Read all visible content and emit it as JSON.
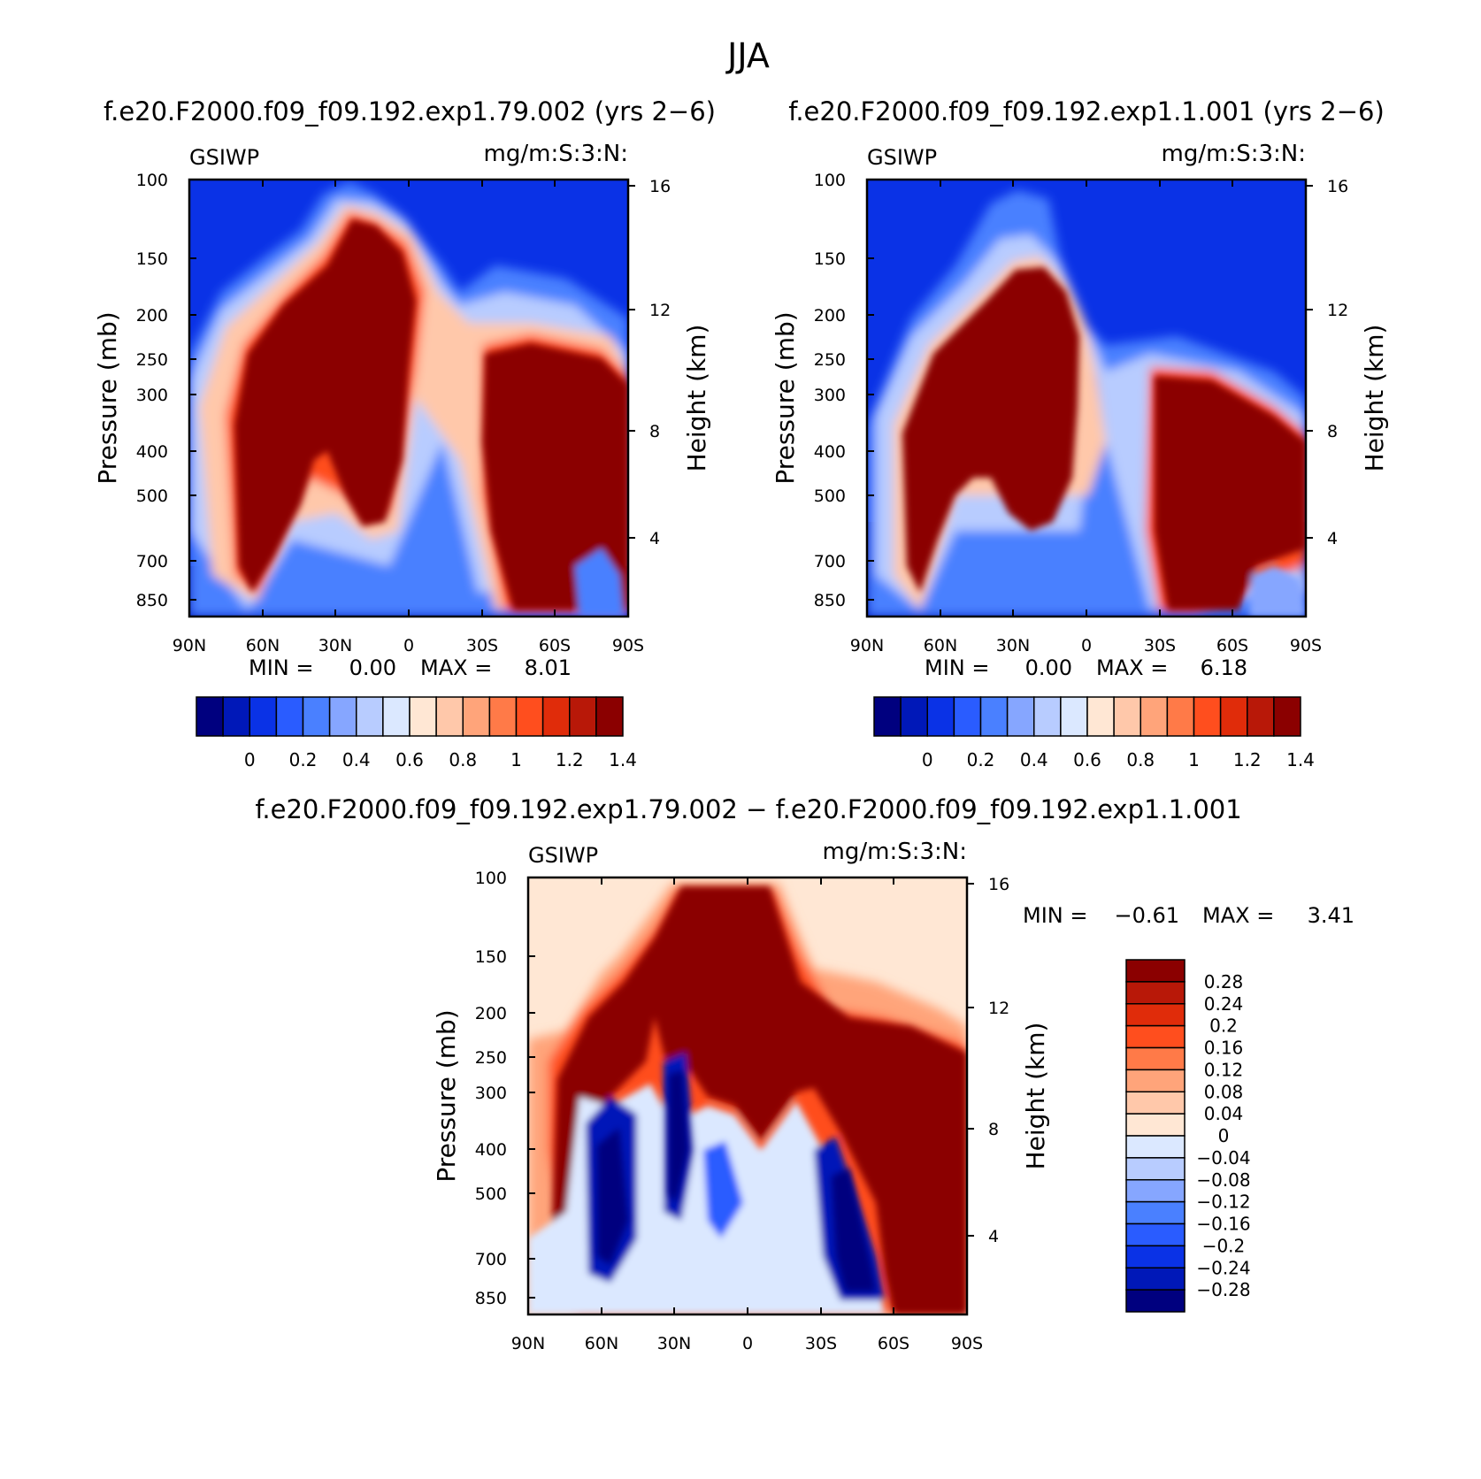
{
  "figure": {
    "title": "JJA"
  },
  "chart_data": [
    {
      "type": "contour",
      "title": "f.e20.F2000.f09_f09.192.exp1.79.002 (yrs 2−6)",
      "variable": "GSIWP",
      "units": "mg/m:S:3:N:",
      "xlabel": "",
      "ylabel": "Pressure (mb)",
      "y2label": "Height (km)",
      "x_ticks": [
        "90N",
        "60N",
        "30N",
        "0",
        "30S",
        "60S",
        "90S"
      ],
      "x_range": [
        90,
        -90
      ],
      "y_ticks": [
        100,
        150,
        200,
        250,
        300,
        400,
        500,
        700,
        850
      ],
      "y_range": [
        100,
        925
      ],
      "y2_ticks": [
        16,
        12,
        8,
        4
      ],
      "stats": {
        "min_label": "MIN =",
        "min": "0.00",
        "max_label": "MAX =",
        "max": "8.01"
      },
      "colorbar": {
        "orientation": "horizontal",
        "levels": [
          "0",
          "0.2",
          "0.4",
          "0.6",
          "0.8",
          "1",
          "1.2",
          "1.4"
        ],
        "colors": [
          "#00007f",
          "#0018b8",
          "#0a32e6",
          "#2a5cff",
          "#4a80ff",
          "#86a6ff",
          "#b8ccff",
          "#dbe8ff",
          "#ffe7d4",
          "#ffc8aa",
          "#ffa47a",
          "#ff7a48",
          "#ff4e1e",
          "#e02c0a",
          "#b81808",
          "#8b0000"
        ]
      },
      "features": [
        "NH/tropical upper-level maximum centred near 15N reaching ~105 mb",
        "SH mid-latitude maximum from ~250 mb to surface"
      ]
    },
    {
      "type": "contour",
      "title": "f.e20.F2000.f09_f09.192.exp1.1.001 (yrs 2−6)",
      "variable": "GSIWP",
      "units": "mg/m:S:3:N:",
      "xlabel": "",
      "ylabel": "Pressure (mb)",
      "y2label": "Height (km)",
      "x_ticks": [
        "90N",
        "60N",
        "30N",
        "0",
        "30S",
        "60S",
        "90S"
      ],
      "x_range": [
        90,
        -90
      ],
      "y_ticks": [
        100,
        150,
        200,
        250,
        300,
        400,
        500,
        700,
        850
      ],
      "y_range": [
        100,
        925
      ],
      "y2_ticks": [
        16,
        12,
        8,
        4
      ],
      "stats": {
        "min_label": "MIN =",
        "min": "0.00",
        "max_label": "MAX =",
        "max": "6.18"
      },
      "colorbar": {
        "orientation": "horizontal",
        "levels": [
          "0",
          "0.2",
          "0.4",
          "0.6",
          "0.8",
          "1",
          "1.2",
          "1.4"
        ],
        "colors": [
          "#00007f",
          "#0018b8",
          "#0a32e6",
          "#2a5cff",
          "#4a80ff",
          "#86a6ff",
          "#b8ccff",
          "#dbe8ff",
          "#ffe7d4",
          "#ffc8aa",
          "#ffa47a",
          "#ff7a48",
          "#ff4e1e",
          "#e02c0a",
          "#b81808",
          "#8b0000"
        ]
      },
      "features": [
        "NH/tropical maximum top near ~160 mb",
        "SH mid-latitude maximum from ~300 mb to surface"
      ]
    },
    {
      "type": "contour",
      "title": "f.e20.F2000.f09_f09.192.exp1.79.002 − f.e20.F2000.f09_f09.192.exp1.1.001",
      "variable": "GSIWP",
      "units": "mg/m:S:3:N:",
      "xlabel": "",
      "ylabel": "Pressure (mb)",
      "y2label": "Height (km)",
      "x_ticks": [
        "90N",
        "60N",
        "30N",
        "0",
        "30S",
        "60S",
        "90S"
      ],
      "x_range": [
        90,
        -90
      ],
      "y_ticks": [
        100,
        150,
        200,
        250,
        300,
        400,
        500,
        700,
        850
      ],
      "y_range": [
        100,
        925
      ],
      "y2_ticks": [
        16,
        12,
        8,
        4
      ],
      "stats": {
        "min_label": "MIN =",
        "min": "−0.61",
        "max_label": "MAX =",
        "max": "3.41"
      },
      "colorbar": {
        "orientation": "vertical",
        "levels": [
          "0.28",
          "0.24",
          "0.2",
          "0.16",
          "0.12",
          "0.08",
          "0.04",
          "0",
          "−0.04",
          "−0.08",
          "−0.12",
          "−0.16",
          "−0.2",
          "−0.24",
          "−0.28"
        ],
        "colors": [
          "#8b0000",
          "#b81808",
          "#e02c0a",
          "#ff4e1e",
          "#ff7a48",
          "#ffa47a",
          "#ffc8aa",
          "#ffe7d4",
          "#dbe8ff",
          "#b8ccff",
          "#86a6ff",
          "#4a80ff",
          "#2a5cff",
          "#0a32e6",
          "#0018b8",
          "#00007f"
        ]
      },
      "features": [
        "positive differences above ~300 mb at all latitudes",
        "negative pockets 60N–10N and 30S–55S in the mid/lower troposphere"
      ]
    }
  ]
}
